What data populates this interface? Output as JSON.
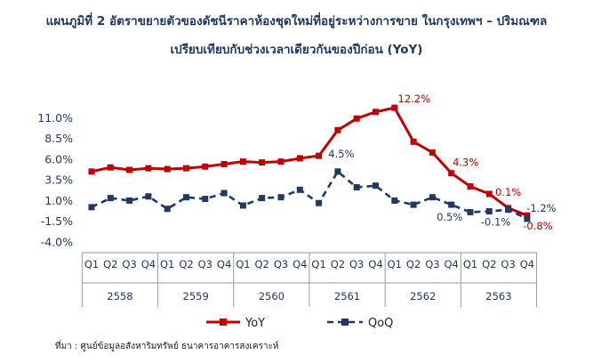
{
  "title_line1": "แผนภูมิที่ 2 อัตราขยายตัวของดัชนีราคาห้องชุดใหม่ที่อยู่ระหว่างการขาย ในกรุงเทพฯ – ปริมณฑล",
  "title_line2": "เปรียบเทียบกับช่วงเวลาเดียวกันของปีก่อน (YoY)",
  "source": "ที่มา : ศูนย์ข้อมูลอสังหาริมทรัพย์ ธนาคารอาคารสงเคราะห์",
  "colors": {
    "yoy": "#c00000",
    "qoq": "#1f3864",
    "text": "#1f3864"
  },
  "chart_data": {
    "type": "line",
    "quarters": [
      "Q1",
      "Q2",
      "Q3",
      "Q4",
      "Q1",
      "Q2",
      "Q3",
      "Q4",
      "Q1",
      "Q2",
      "Q3",
      "Q4",
      "Q1",
      "Q2",
      "Q3",
      "Q4",
      "Q1",
      "Q2",
      "Q3",
      "Q4",
      "Q1",
      "Q2",
      "Q3",
      "Q4"
    ],
    "years": [
      "2558",
      "2559",
      "2560",
      "2561",
      "2562",
      "2563"
    ],
    "y_ticks": [
      "11.0%",
      "8.5%",
      "6.0%",
      "3.5%",
      "1.0%",
      "-1.5%",
      "-4.0%"
    ],
    "ylim": [
      -4.0,
      13.5
    ],
    "grid": false,
    "legend_position": "bottom",
    "series": [
      {
        "name": "YoY",
        "style": "solid-square",
        "values": [
          4.5,
          5.0,
          4.7,
          4.9,
          4.8,
          4.9,
          5.1,
          5.4,
          5.7,
          5.6,
          5.7,
          6.1,
          6.4,
          9.5,
          10.9,
          11.7,
          12.2,
          8.1,
          6.8,
          4.3,
          2.7,
          1.8,
          0.1,
          -0.8
        ],
        "labels": [
          {
            "index": 16,
            "text": "12.2%"
          },
          {
            "index": 19,
            "text": "4.3%"
          },
          {
            "index": 22,
            "text": "0.1%"
          },
          {
            "index": 23,
            "text": "-0.8%"
          }
        ]
      },
      {
        "name": "QoQ",
        "style": "dashed-square",
        "values": [
          0.2,
          1.3,
          1.0,
          1.5,
          0.0,
          1.4,
          1.2,
          1.9,
          0.4,
          1.3,
          1.4,
          2.3,
          0.7,
          4.5,
          2.6,
          2.8,
          1.0,
          0.5,
          1.4,
          0.5,
          -0.4,
          -0.3,
          -0.1,
          -1.2
        ],
        "labels": [
          {
            "index": 13,
            "text": "4.5%"
          },
          {
            "index": 19,
            "text": "0.5%"
          },
          {
            "index": 22,
            "text": "-0.1%"
          },
          {
            "index": 23,
            "text": "-1.2%"
          }
        ]
      }
    ]
  }
}
